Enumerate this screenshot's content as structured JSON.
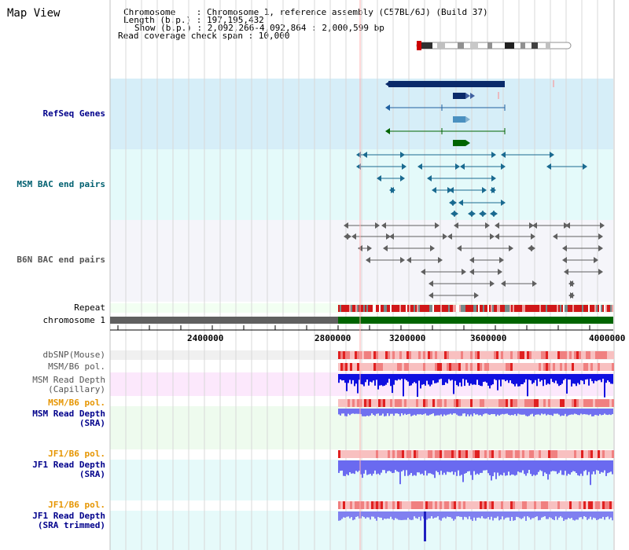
{
  "header": {
    "title": "Map View",
    "info_lines": [
      "Chromosome    : Chromosome 1, reference assembly (C57BL/6J) (Build 37)",
      "Length (b.p.) : 197,195,432",
      "Show (b.p.) : 2,092,266-4,092,864 : 2,000,599 bp",
      "Read coverage check span : 10,000"
    ]
  },
  "tracks": {
    "refseq": "RefSeq Genes",
    "msm_bac": "MSM BAC end pairs",
    "b6n_bac": "B6N BAC end pairs",
    "repeat": "Repeat",
    "chromosome": "chromosome 1",
    "dbsnp": "dbSNP(Mouse)",
    "msm_b6_pol_1": "MSM/B6 pol.",
    "msm_depth_cap_1": "MSM Read Depth",
    "msm_depth_cap_2": "(Capillary)",
    "msm_b6_pol_2": "MSM/B6 pol.",
    "msm_depth_sra_1": "MSM Read Depth",
    "msm_depth_sra_2": "(SRA)",
    "jf1_pol_1": "JF1/B6 pol.",
    "jf1_depth_1": "JF1 Read Depth",
    "jf1_depth_2": "(SRA)",
    "jf1_pol_2": "JF1/B6 pol.",
    "jf1_depth_t1": "JF1 Read Depth",
    "jf1_depth_t2": "(SRA trimmed)"
  },
  "axis": {
    "ticks": [
      "2400000",
      "2800000",
      "3200000",
      "3600000",
      "4000000"
    ]
  },
  "colors": {
    "refseq_bg": "#d6eef8",
    "msm_bac_bg": "#e4fafa",
    "b6n_bac_bg": "#f5f5fa",
    "dbsnp_bg": "#f0f0f0",
    "cap_bg": "#fce8fc",
    "sra_bg": "#eefbee",
    "jf1_bg": "#e6fafa",
    "chromosome_green": "#006400",
    "chromosome_grey": "#606060",
    "depth_blue": "#1010e0",
    "depth_lightblue": "#7070f0",
    "pol_red": "#f06060"
  }
}
